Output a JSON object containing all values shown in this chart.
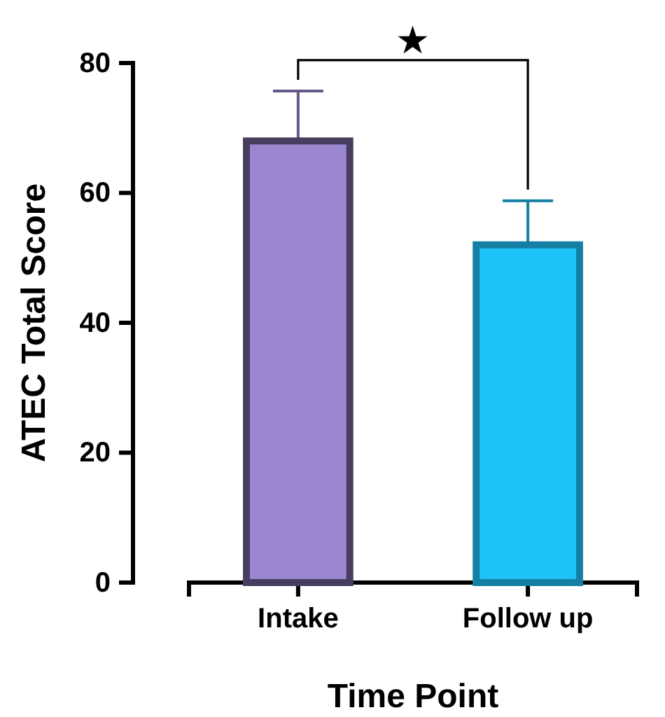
{
  "chart_data": {
    "type": "bar",
    "xlabel": "Time Point",
    "ylabel": "ATEC Total Score",
    "categories": [
      "Intake",
      "Follow up"
    ],
    "values": [
      68,
      52
    ],
    "colors": [
      "#9b87d0",
      "#1ec3f9"
    ],
    "errors": [
      [
        68,
        75.7
      ],
      [
        52,
        58.8
      ]
    ],
    "ylim": [
      0,
      80
    ],
    "yticks": [
      0,
      20,
      40,
      60,
      80
    ],
    "grid": false,
    "annotations": [
      "★"
    ]
  }
}
